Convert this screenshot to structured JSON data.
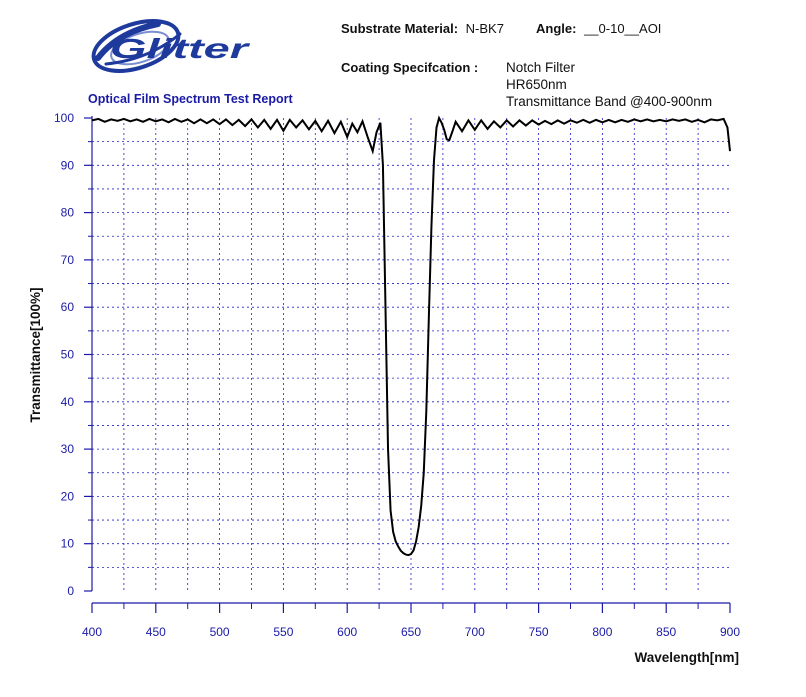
{
  "header": {
    "brand": "Glitter",
    "report_title": "Optical Film Spectrum Test Report",
    "substrate_label": "Substrate Material:",
    "substrate_value": "N-BK7",
    "angle_label": "Angle:",
    "angle_value": "__0-10__AOI",
    "coating_label": "Coating Specifcation :",
    "coating_lines": [
      "Notch Filter",
      "HR650nm",
      "Transmittance Band @400-900nm"
    ]
  },
  "colors": {
    "curve": "#000000",
    "grid": "#2222cc",
    "axis": "#1a1aa6",
    "title": "#1a1aa6",
    "logo": "#1e3a9c"
  },
  "chart_data": {
    "type": "line",
    "xlabel": "Wavelength[nm]",
    "ylabel": "Transmittance[100%]",
    "xlim": [
      400,
      900
    ],
    "ylim": [
      0,
      100
    ],
    "xticks": [
      400,
      450,
      500,
      550,
      600,
      650,
      700,
      750,
      800,
      850,
      900
    ],
    "yticks": [
      0,
      10,
      20,
      30,
      40,
      50,
      60,
      70,
      80,
      90,
      100
    ],
    "grid": true,
    "series": [
      {
        "x": [
          400,
          405,
          410,
          415,
          420,
          425,
          430,
          435,
          440,
          445,
          450,
          455,
          460,
          465,
          470,
          475,
          480,
          485,
          490,
          495,
          500,
          505,
          510,
          515,
          520,
          525,
          530,
          535,
          540,
          545,
          550,
          555,
          560,
          565,
          570,
          575,
          580,
          585,
          590,
          595,
          600,
          604,
          608,
          612,
          616,
          620,
          623,
          626,
          628,
          630,
          632,
          634,
          636,
          638,
          640,
          642,
          644,
          646,
          648,
          650,
          652,
          654,
          656,
          658,
          660,
          662,
          664,
          666,
          668,
          670,
          672,
          674,
          676,
          678,
          680,
          682,
          685,
          690,
          695,
          700,
          705,
          710,
          715,
          720,
          725,
          730,
          735,
          740,
          745,
          750,
          755,
          760,
          765,
          770,
          775,
          780,
          785,
          790,
          795,
          800,
          805,
          810,
          815,
          820,
          825,
          830,
          835,
          840,
          845,
          850,
          855,
          860,
          865,
          870,
          875,
          880,
          885,
          890,
          895,
          898,
          900
        ],
        "y": [
          99.5,
          99.8,
          99.2,
          99.7,
          99.4,
          99.8,
          99.3,
          99.7,
          99.2,
          99.8,
          99.3,
          99.7,
          99.1,
          99.8,
          99.2,
          99.7,
          98.9,
          99.7,
          98.9,
          99.7,
          98.7,
          99.7,
          98.5,
          99.6,
          98.3,
          99.7,
          98.0,
          99.6,
          97.7,
          99.6,
          97.3,
          99.6,
          98.0,
          99.5,
          97.6,
          99.4,
          97.2,
          99.4,
          96.8,
          99.2,
          96.0,
          98.8,
          97.0,
          99.3,
          96.0,
          93.0,
          97.0,
          99.0,
          90.0,
          60.0,
          30.0,
          17.0,
          12.5,
          10.5,
          9.4,
          8.5,
          8.0,
          7.7,
          7.6,
          7.8,
          8.6,
          10.5,
          13.5,
          18.0,
          25.0,
          38.0,
          58.0,
          77.0,
          91.0,
          98.0,
          100.0,
          99.0,
          97.5,
          95.5,
          95.3,
          96.8,
          99.2,
          97.2,
          99.5,
          97.5,
          99.5,
          97.7,
          99.3,
          98.0,
          99.5,
          98.2,
          99.5,
          98.4,
          99.5,
          98.6,
          99.4,
          98.7,
          99.5,
          98.8,
          99.5,
          99.0,
          99.6,
          99.0,
          99.6,
          99.1,
          99.6,
          99.1,
          99.6,
          99.2,
          99.7,
          99.3,
          99.7,
          99.3,
          99.6,
          99.3,
          99.7,
          99.4,
          99.7,
          99.2,
          99.6,
          99.1,
          99.7,
          99.5,
          99.8,
          98.0,
          93.0
        ]
      }
    ]
  }
}
